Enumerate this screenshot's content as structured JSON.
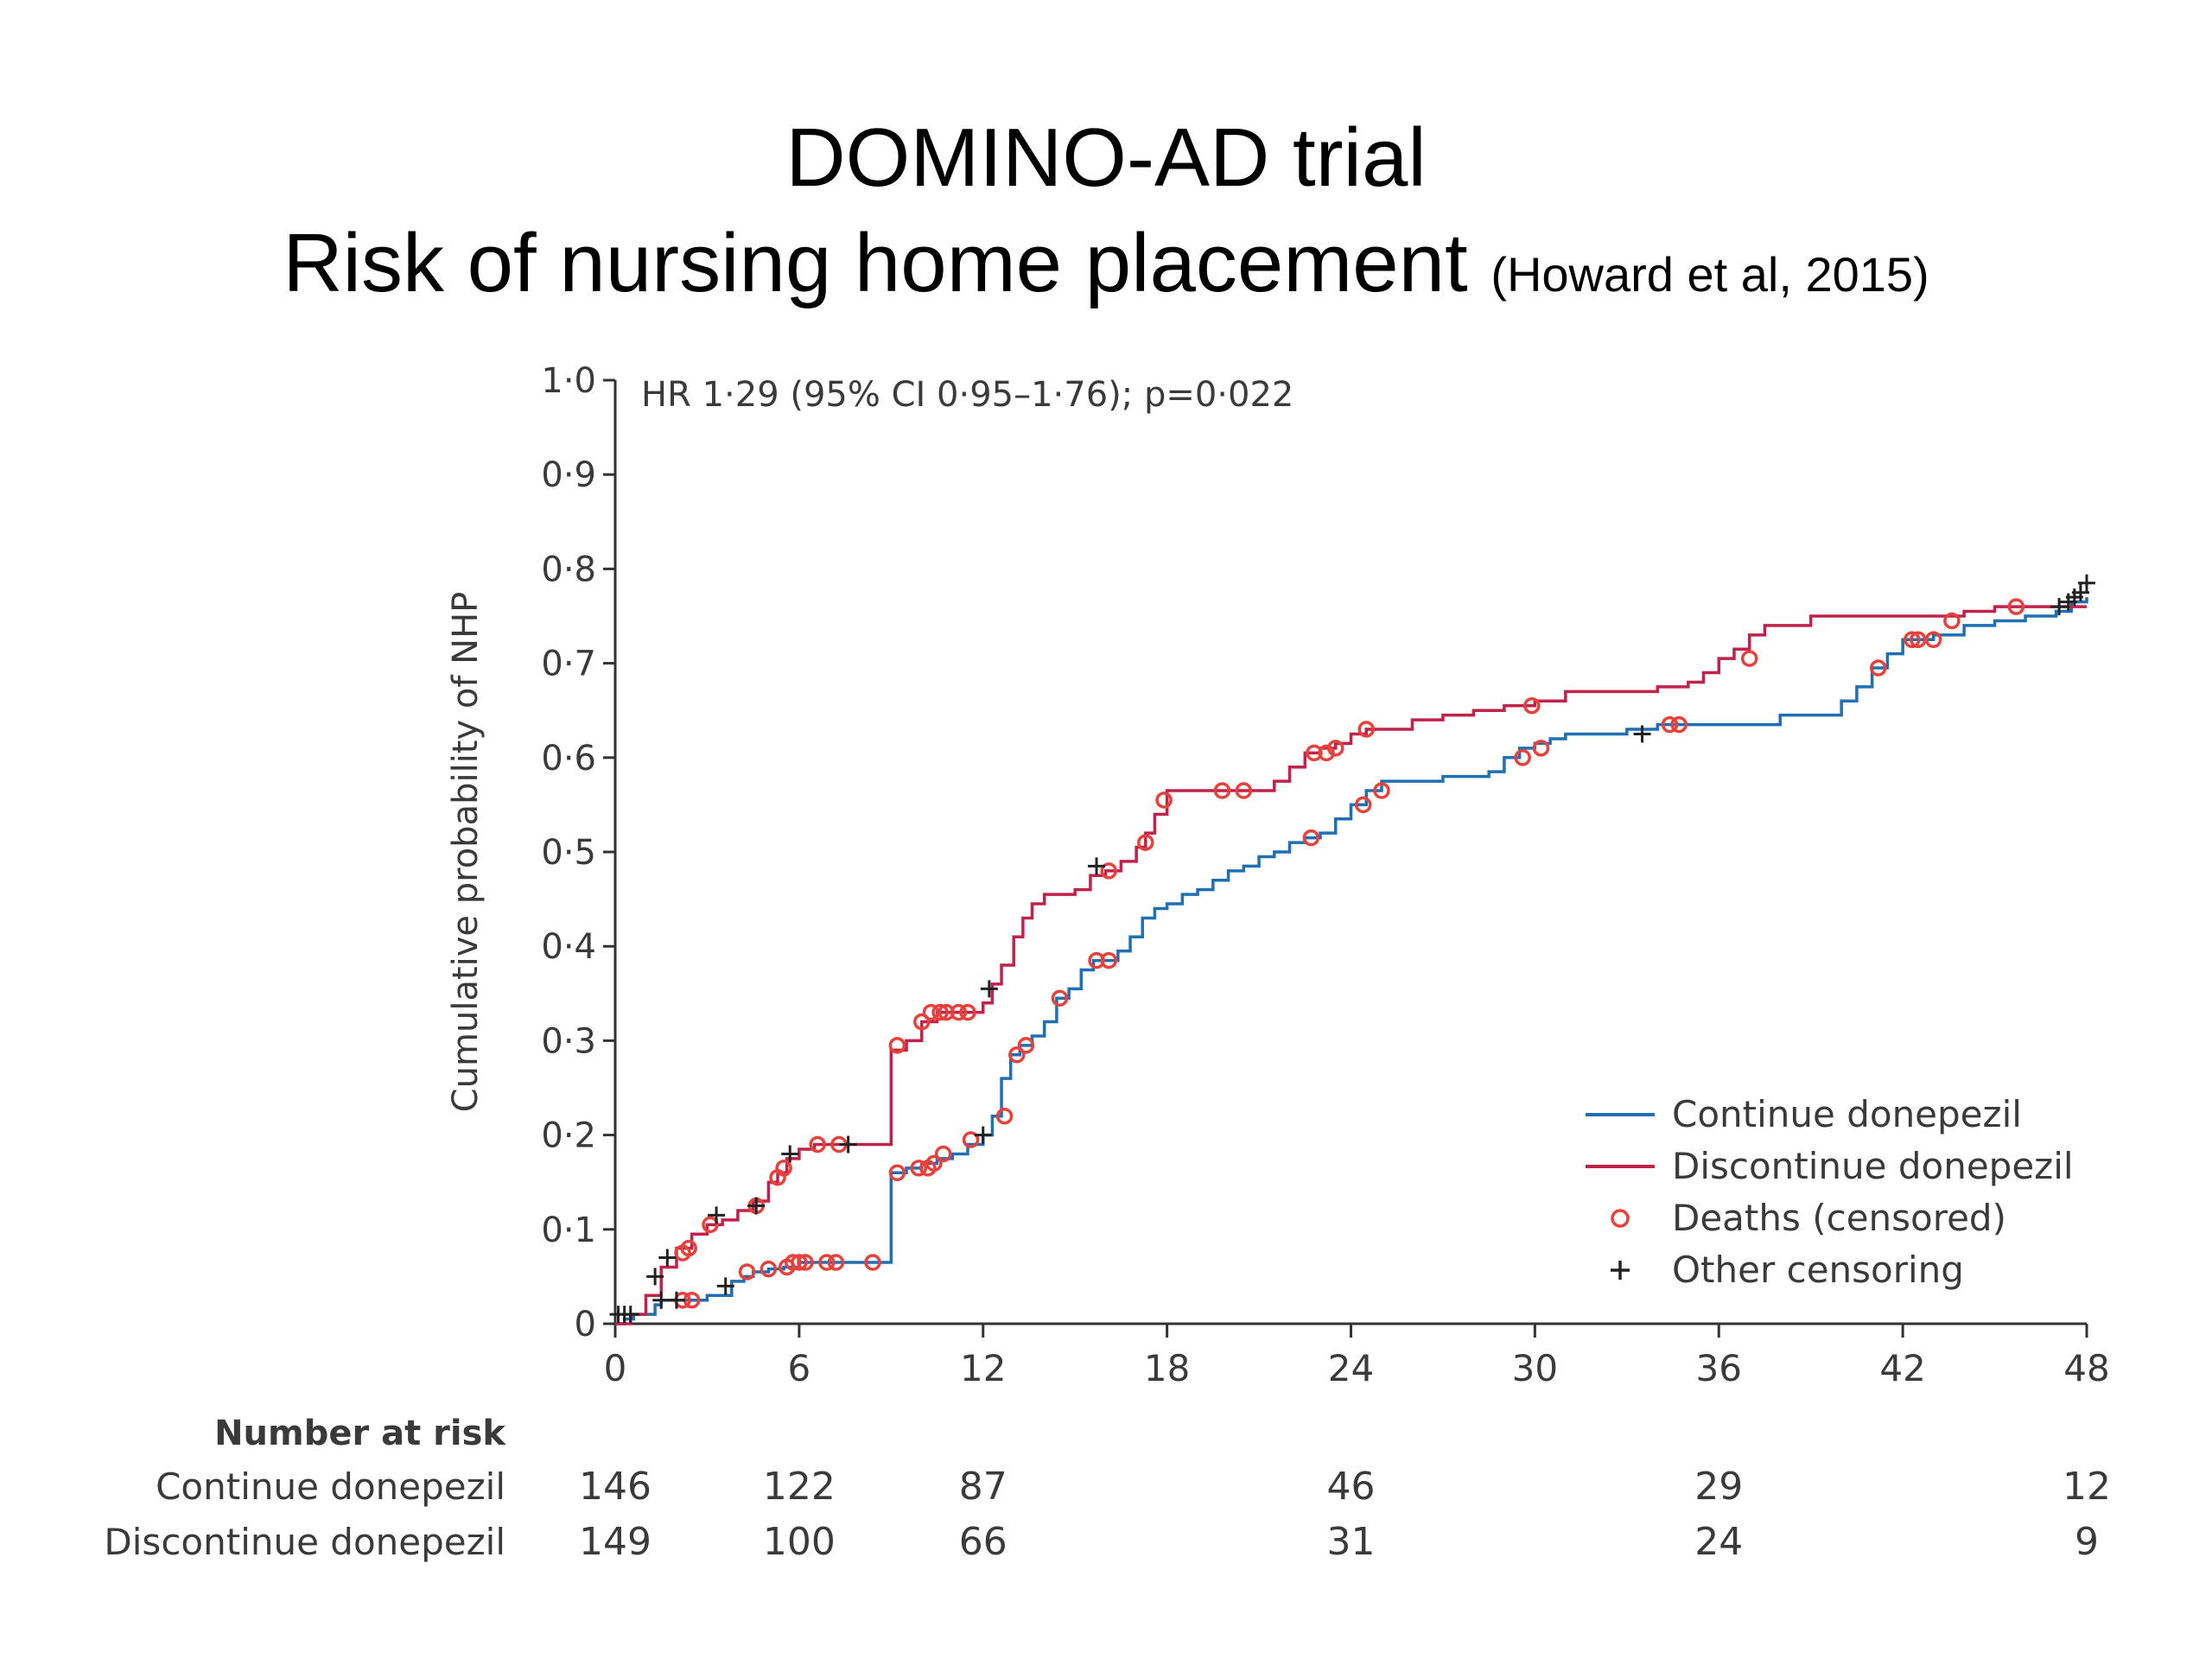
{
  "slide": {
    "title_line1": "DOMINO-AD trial",
    "title_line2": "Risk of nursing home placement",
    "citation": "(Howard et al, 2015)"
  },
  "chart_data": {
    "type": "line",
    "title": "",
    "xlabel": "",
    "ylabel": "Cumulative probability of NHP",
    "annotation": "HR 1·29 (95% CI 0·95–1·76); p=0·022",
    "xlim": [
      0,
      48
    ],
    "ylim": [
      0,
      1.0
    ],
    "x_ticks": [
      0,
      6,
      12,
      18,
      24,
      30,
      36,
      42,
      48
    ],
    "x_tick_labels": [
      "0",
      "6",
      "12",
      "18",
      "24",
      "30",
      "36",
      "42",
      "48"
    ],
    "y_ticks": [
      0,
      0.1,
      0.2,
      0.3,
      0.4,
      0.5,
      0.6,
      0.7,
      0.8,
      0.9,
      1.0
    ],
    "y_tick_labels": [
      "0",
      "0·1",
      "0·2",
      "0·3",
      "0·4",
      "0·5",
      "0·6",
      "0·7",
      "0·8",
      "0·9",
      "1·0"
    ],
    "grid": false,
    "legend_position": "bottom-right",
    "legend": [
      {
        "label": "Continue donepezil",
        "marker": "line",
        "color": "#1f6fb4"
      },
      {
        "label": "Discontinue donepezil",
        "marker": "line",
        "color": "#c0224a"
      },
      {
        "label": "Deaths (censored)",
        "marker": "o",
        "color": "#e8403a"
      },
      {
        "label": "Other censoring",
        "marker": "+",
        "color": "#222222"
      }
    ],
    "series": [
      {
        "name": "Continue donepezil",
        "color": "#1f6fb4",
        "step_x": [
          0,
          0.3,
          0.6,
          1.0,
          1.3,
          1.5,
          2.0,
          3.0,
          3.8,
          4.2,
          4.5,
          5.0,
          5.5,
          6.0,
          8.0,
          8.8,
          9.0,
          9.5,
          10.0,
          10.5,
          11.0,
          11.5,
          12.0,
          12.3,
          12.6,
          12.9,
          13.2,
          13.6,
          14.0,
          14.4,
          14.8,
          15.2,
          15.6,
          16.0,
          16.4,
          16.8,
          17.2,
          17.6,
          18.0,
          18.5,
          19.0,
          19.5,
          20.0,
          20.5,
          21.0,
          21.5,
          22.0,
          22.5,
          23.0,
          23.5,
          24.0,
          24.5,
          25.0,
          26.0,
          27.0,
          28.5,
          29.0,
          29.5,
          30.0,
          30.5,
          31.0,
          32.0,
          33.0,
          34.0,
          35.0,
          36.0,
          37.0,
          38.0,
          39.0,
          40.0,
          40.5,
          41.0,
          41.5,
          42.0,
          42.3,
          43.0,
          44.0,
          45.0,
          46.0,
          47.0,
          47.5,
          48.0
        ],
        "step_y": [
          0,
          0.005,
          0.01,
          0.01,
          0.02,
          0.025,
          0.025,
          0.03,
          0.045,
          0.05,
          0.055,
          0.058,
          0.06,
          0.065,
          0.065,
          0.065,
          0.16,
          0.165,
          0.17,
          0.175,
          0.18,
          0.19,
          0.2,
          0.22,
          0.26,
          0.285,
          0.295,
          0.305,
          0.32,
          0.345,
          0.355,
          0.375,
          0.385,
          0.385,
          0.395,
          0.41,
          0.43,
          0.44,
          0.445,
          0.455,
          0.46,
          0.47,
          0.48,
          0.485,
          0.495,
          0.5,
          0.51,
          0.515,
          0.52,
          0.535,
          0.55,
          0.565,
          0.575,
          0.575,
          0.58,
          0.585,
          0.6,
          0.61,
          0.615,
          0.62,
          0.625,
          0.625,
          0.63,
          0.635,
          0.635,
          0.635,
          0.635,
          0.645,
          0.645,
          0.66,
          0.675,
          0.695,
          0.71,
          0.725,
          0.725,
          0.73,
          0.74,
          0.745,
          0.75,
          0.755,
          0.765,
          0.77
        ]
      },
      {
        "name": "Discontinue donepezil",
        "color": "#c0224a",
        "step_x": [
          0,
          0.5,
          1.0,
          1.5,
          2.0,
          2.5,
          3.0,
          3.5,
          4.0,
          4.5,
          5.0,
          5.3,
          5.6,
          6.0,
          6.5,
          7.0,
          8.0,
          8.5,
          9.0,
          9.5,
          10.0,
          10.5,
          11.0,
          12.0,
          12.3,
          12.6,
          13.0,
          13.3,
          13.6,
          14.0,
          15.0,
          15.5,
          16.0,
          16.5,
          17.0,
          17.3,
          17.6,
          18.0,
          19.0,
          20.0,
          21.0,
          21.5,
          22.0,
          22.5,
          23.0,
          23.5,
          24.0,
          24.5,
          25.0,
          26.0,
          27.0,
          28.0,
          29.0,
          30.0,
          31.0,
          32.0,
          33.0,
          34.0,
          35.0,
          35.5,
          36.0,
          36.5,
          37.0,
          37.5,
          38.0,
          39.0,
          40.0,
          41.0,
          42.0,
          43.0,
          44.0,
          45.0,
          46.0,
          47.0,
          48.0
        ],
        "step_y": [
          0,
          0.01,
          0.03,
          0.06,
          0.08,
          0.095,
          0.105,
          0.11,
          0.12,
          0.13,
          0.15,
          0.16,
          0.175,
          0.185,
          0.19,
          0.19,
          0.19,
          0.19,
          0.29,
          0.3,
          0.32,
          0.33,
          0.33,
          0.34,
          0.36,
          0.38,
          0.41,
          0.43,
          0.445,
          0.455,
          0.46,
          0.475,
          0.48,
          0.49,
          0.505,
          0.52,
          0.54,
          0.565,
          0.565,
          0.565,
          0.565,
          0.575,
          0.59,
          0.605,
          0.61,
          0.615,
          0.625,
          0.63,
          0.63,
          0.64,
          0.645,
          0.65,
          0.655,
          0.66,
          0.67,
          0.67,
          0.67,
          0.675,
          0.68,
          0.69,
          0.705,
          0.715,
          0.73,
          0.74,
          0.74,
          0.75,
          0.75,
          0.75,
          0.75,
          0.75,
          0.755,
          0.76,
          0.76,
          0.76,
          0.76
        ]
      }
    ],
    "deaths_censored": {
      "continue": {
        "x": [
          2.2,
          2.5,
          4.3,
          5.0,
          5.6,
          5.8,
          6.0,
          6.2,
          6.9,
          7.2,
          8.4,
          9.2,
          9.9,
          10.2,
          10.4,
          10.7,
          11.6,
          12.7,
          13.1,
          13.4,
          14.5,
          15.7,
          16.1,
          22.7,
          24.4,
          25.0,
          29.6,
          30.2,
          34.4,
          34.7,
          41.2,
          42.3,
          42.5,
          43.0
        ],
        "y": [
          0.025,
          0.025,
          0.055,
          0.058,
          0.06,
          0.065,
          0.065,
          0.065,
          0.065,
          0.065,
          0.065,
          0.16,
          0.165,
          0.165,
          0.17,
          0.18,
          0.195,
          0.22,
          0.285,
          0.295,
          0.345,
          0.385,
          0.385,
          0.515,
          0.55,
          0.565,
          0.6,
          0.61,
          0.635,
          0.635,
          0.695,
          0.725,
          0.725,
          0.725
        ]
      },
      "discontinue": {
        "x": [
          2.2,
          2.4,
          3.1,
          4.6,
          5.3,
          5.5,
          6.6,
          7.3,
          9.2,
          10.0,
          10.3,
          10.6,
          10.8,
          11.2,
          11.5,
          16.1,
          17.3,
          17.9,
          19.8,
          20.5,
          22.8,
          23.2,
          23.5,
          24.5,
          29.9,
          37.0,
          43.6,
          45.7
        ],
        "y": [
          0.075,
          0.08,
          0.105,
          0.125,
          0.155,
          0.165,
          0.19,
          0.19,
          0.295,
          0.32,
          0.33,
          0.33,
          0.33,
          0.33,
          0.33,
          0.48,
          0.51,
          0.555,
          0.565,
          0.565,
          0.605,
          0.605,
          0.61,
          0.63,
          0.655,
          0.705,
          0.745,
          0.76
        ]
      }
    },
    "other_censoring": {
      "x": [
        0.1,
        0.3,
        0.5,
        1.3,
        1.5,
        1.7,
        2.0,
        3.3,
        3.6,
        4.6,
        5.7,
        7.6,
        12.0,
        12.2,
        15.7,
        33.5,
        47.1,
        47.4,
        47.6,
        47.8,
        48.0
      ],
      "y": [
        0.01,
        0.01,
        0.01,
        0.05,
        0.025,
        0.07,
        0.025,
        0.115,
        0.04,
        0.125,
        0.18,
        0.19,
        0.2,
        0.355,
        0.485,
        0.625,
        0.76,
        0.765,
        0.77,
        0.775,
        0.785
      ]
    },
    "number_at_risk": {
      "header": "Number at risk",
      "rows": [
        {
          "label": "Continue donepezil",
          "x": [
            0,
            6,
            12,
            24,
            36,
            48
          ],
          "values": [
            "146",
            "122",
            "87",
            "46",
            "29",
            "12"
          ]
        },
        {
          "label": "Discontinue donepezil",
          "x": [
            0,
            6,
            12,
            24,
            36,
            48
          ],
          "values": [
            "149",
            "100",
            "66",
            "31",
            "24",
            "9"
          ]
        }
      ]
    }
  }
}
